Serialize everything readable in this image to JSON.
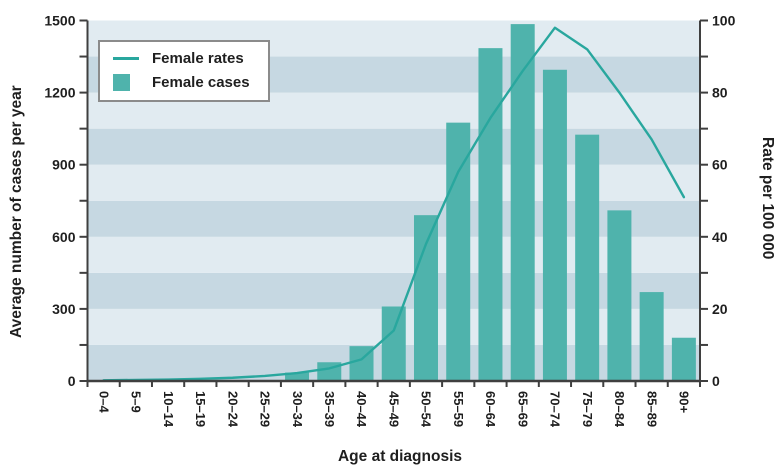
{
  "chart_data": {
    "type": "combo-bar-line",
    "title": "",
    "xlabel": "Age at diagnosis",
    "categories": [
      "0–4",
      "5–9",
      "10–14",
      "15–19",
      "20–24",
      "25–29",
      "30–34",
      "35–39",
      "40–44",
      "45–49",
      "50–54",
      "55–59",
      "60–64",
      "65–69",
      "70–74",
      "75–79",
      "80–84",
      "85–89",
      "90+"
    ],
    "series": [
      {
        "name": "Female rates",
        "kind": "line",
        "axis": "right",
        "values": [
          0.2,
          0.3,
          0.4,
          0.6,
          0.9,
          1.4,
          2.2,
          3.5,
          6,
          14,
          38,
          58,
          73,
          86,
          98,
          92,
          80,
          67,
          51
        ]
      },
      {
        "name": "Female cases",
        "kind": "bar",
        "axis": "left",
        "values": [
          0,
          0,
          1,
          2,
          3,
          4,
          35,
          78,
          145,
          310,
          690,
          1075,
          1385,
          1485,
          1295,
          1025,
          710,
          370,
          180
        ]
      }
    ],
    "left_axis": {
      "label": "Average number of cases per year",
      "min": 0,
      "max": 1500,
      "major_tick_step": 300,
      "minor_tick_step": 150,
      "tick_labels": [
        "0",
        "300",
        "600",
        "900",
        "1200",
        "1500"
      ]
    },
    "right_axis": {
      "label": "Rate per 100 000",
      "min": 0,
      "max": 100,
      "major_tick_step": 20,
      "minor_tick_step": 10,
      "tick_labels": [
        "0",
        "20",
        "40",
        "60",
        "80",
        "100"
      ]
    },
    "legend": {
      "position": "top-left-inside",
      "items": [
        {
          "label": "Female rates",
          "swatch": "line"
        },
        {
          "label": "Female cases",
          "swatch": "square"
        }
      ]
    },
    "grid_bands": true,
    "colors": {
      "bar": "#4fb3ac",
      "line": "#29a79e",
      "band_light": "#e1ebf1",
      "band_dark": "#c6d8e2",
      "axis": "#3f3f3f",
      "text": "#1f1f1f",
      "legend_border": "#8b8b8b",
      "background": "#ffffff"
    }
  }
}
